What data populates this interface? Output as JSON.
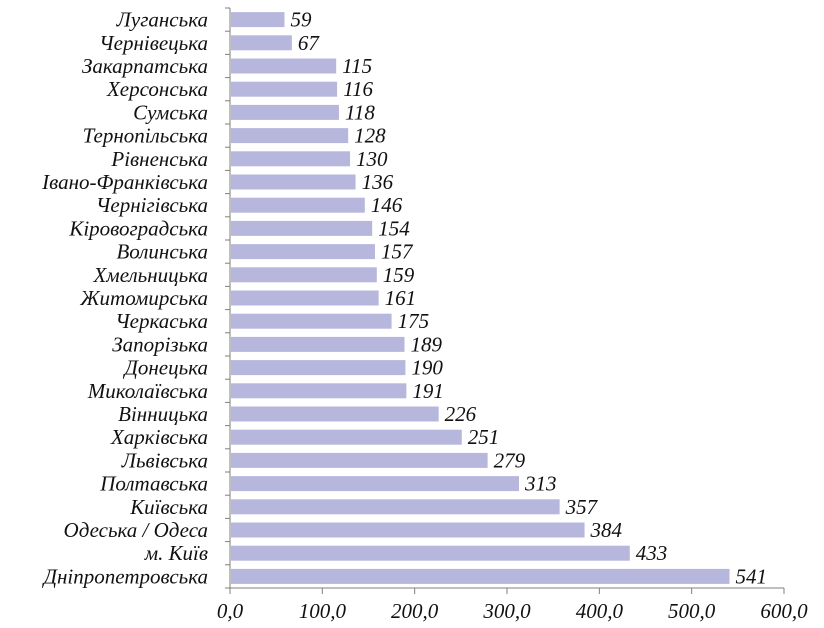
{
  "chart_data": {
    "type": "bar",
    "orientation": "horizontal",
    "categories": [
      "Луганська",
      "Чернівецька",
      "Закарпатська",
      "Херсонська",
      "Сумська",
      "Тернопільська",
      "Рівненська",
      "Івано-Франківська",
      "Чернігівська",
      "Кіровоградська",
      "Волинська",
      "Хмельницька",
      "Житомирська",
      "Черкаська",
      "Запорізька",
      "Донецька",
      "Миколаївська",
      "Вінницька",
      "Харківська",
      "Львівська",
      "Полтавська",
      "Київська",
      "Одеська / Одеса",
      "м. Київ",
      "Дніпропетровська"
    ],
    "values": [
      59,
      67,
      115,
      116,
      118,
      128,
      130,
      136,
      146,
      154,
      157,
      159,
      161,
      175,
      189,
      190,
      191,
      226,
      251,
      279,
      313,
      357,
      384,
      433,
      541
    ],
    "value_labels": [
      "59",
      "67",
      "115",
      "116",
      "118",
      "128",
      "130",
      "136",
      "146",
      "154",
      "157",
      "159",
      "161",
      "175",
      "189",
      "190",
      "191",
      "226",
      "251",
      "279",
      "313",
      "357",
      "384",
      "433",
      "541"
    ],
    "x_ticks": [
      0,
      100,
      200,
      300,
      400,
      500,
      600
    ],
    "x_tick_labels": [
      "0,0",
      "100,0",
      "200,0",
      "300,0",
      "400,0",
      "500,0",
      "600,0"
    ],
    "xlim": [
      0,
      600
    ],
    "title": "",
    "xlabel": "",
    "ylabel": "",
    "grid": false,
    "legend": "none",
    "bar_color": "#b7b7dd"
  }
}
